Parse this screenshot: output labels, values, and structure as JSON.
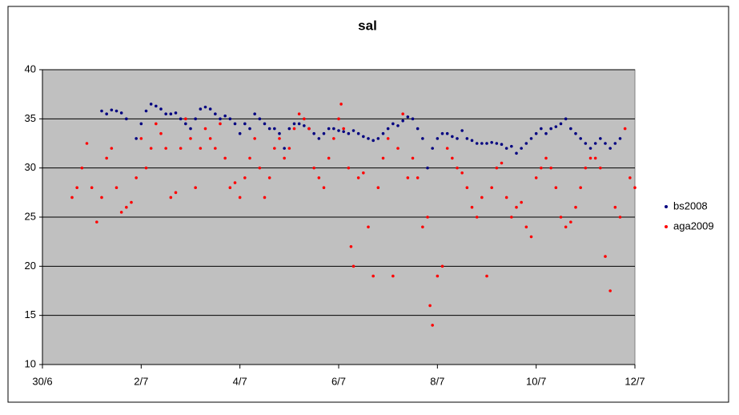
{
  "chart_data": {
    "type": "scatter",
    "title": "sal",
    "xlim": [
      0,
      12
    ],
    "xticks": [
      {
        "value": 0,
        "label": "30/6"
      },
      {
        "value": 2,
        "label": "2/7"
      },
      {
        "value": 4,
        "label": "4/7"
      },
      {
        "value": 6,
        "label": "6/7"
      },
      {
        "value": 8,
        "label": "8/7"
      },
      {
        "value": 10,
        "label": "10/7"
      },
      {
        "value": 12,
        "label": "12/7"
      }
    ],
    "ylim": [
      10,
      40
    ],
    "yticks": [
      10,
      15,
      20,
      25,
      30,
      35,
      40
    ],
    "grid": true,
    "legend": "right",
    "series": [
      {
        "name": "bs2008",
        "color": "#000080",
        "x": [
          1.2,
          1.3,
          1.4,
          1.5,
          1.6,
          1.7,
          1.9,
          2.0,
          2.1,
          2.2,
          2.3,
          2.4,
          2.5,
          2.6,
          2.7,
          2.8,
          2.9,
          3.0,
          3.1,
          3.2,
          3.3,
          3.4,
          3.5,
          3.6,
          3.7,
          3.8,
          3.9,
          4.0,
          4.1,
          4.2,
          4.3,
          4.4,
          4.5,
          4.6,
          4.7,
          4.8,
          4.9,
          5.0,
          5.1,
          5.2,
          5.3,
          5.4,
          5.5,
          5.6,
          5.7,
          5.8,
          5.9,
          6.0,
          6.1,
          6.2,
          6.3,
          6.4,
          6.5,
          6.6,
          6.7,
          6.8,
          6.9,
          7.0,
          7.1,
          7.2,
          7.3,
          7.4,
          7.5,
          7.6,
          7.7,
          7.8,
          7.9,
          8.0,
          8.1,
          8.2,
          8.3,
          8.4,
          8.5,
          8.6,
          8.7,
          8.8,
          8.9,
          9.0,
          9.1,
          9.2,
          9.3,
          9.4,
          9.5,
          9.6,
          9.7,
          9.8,
          9.9,
          10.0,
          10.1,
          10.2,
          10.3,
          10.4,
          10.5,
          10.6,
          10.7,
          10.8,
          10.9,
          11.0,
          11.1,
          11.2,
          11.3,
          11.4,
          11.5,
          11.6,
          11.7
        ],
        "values": [
          35.8,
          35.5,
          35.9,
          35.8,
          35.6,
          35,
          33,
          34.5,
          35.8,
          36.5,
          36.3,
          36,
          35.5,
          35.5,
          35.6,
          35,
          34.5,
          34,
          35,
          36,
          36.2,
          36,
          35.5,
          35,
          35.3,
          35,
          34.5,
          33.5,
          34.5,
          34,
          35.5,
          35,
          34.5,
          34,
          34,
          33.5,
          32,
          34,
          34.5,
          34.5,
          34.3,
          34,
          33.5,
          33,
          33.5,
          34,
          34,
          33.8,
          33.7,
          33.5,
          33.8,
          33.5,
          33.2,
          33,
          32.8,
          33,
          33.5,
          34,
          34.5,
          34.3,
          34.8,
          35.2,
          35,
          34,
          33,
          30,
          32,
          33,
          33.5,
          33.5,
          33.2,
          33,
          33.8,
          33,
          32.8,
          32.5,
          32.5,
          32.5,
          32.6,
          32.5,
          32.4,
          32,
          32.2,
          31.5,
          32,
          32.5,
          33,
          33.5,
          34,
          33.5,
          34,
          34.2,
          34.5,
          35,
          34,
          33.5,
          33,
          32.5,
          32,
          32.5,
          33,
          32.5,
          32,
          32.5,
          33
        ]
      },
      {
        "name": "aga2009",
        "color": "#ff0000",
        "x": [
          0.6,
          0.7,
          0.8,
          0.9,
          1.0,
          1.1,
          1.2,
          1.3,
          1.4,
          1.5,
          1.6,
          1.7,
          1.8,
          1.9,
          2.0,
          2.1,
          2.2,
          2.3,
          2.4,
          2.5,
          2.6,
          2.7,
          2.8,
          2.9,
          3.0,
          3.1,
          3.2,
          3.3,
          3.4,
          3.5,
          3.6,
          3.7,
          3.8,
          3.9,
          4.0,
          4.1,
          4.2,
          4.3,
          4.4,
          4.5,
          4.6,
          4.7,
          4.8,
          4.9,
          5.0,
          5.1,
          5.2,
          5.3,
          5.4,
          5.5,
          5.6,
          5.7,
          5.8,
          5.9,
          6.0,
          6.05,
          6.1,
          6.2,
          6.25,
          6.3,
          6.4,
          6.5,
          6.6,
          6.7,
          6.8,
          6.9,
          7.0,
          7.1,
          7.2,
          7.3,
          7.4,
          7.5,
          7.6,
          7.7,
          7.8,
          7.85,
          7.9,
          8.0,
          8.1,
          8.2,
          8.3,
          8.4,
          8.5,
          8.6,
          8.7,
          8.8,
          8.9,
          9.0,
          9.1,
          9.2,
          9.3,
          9.4,
          9.5,
          9.6,
          9.7,
          9.8,
          9.9,
          10.0,
          10.1,
          10.2,
          10.3,
          10.4,
          10.5,
          10.6,
          10.7,
          10.8,
          10.9,
          11.0,
          11.1,
          11.2,
          11.3,
          11.4,
          11.5,
          11.6,
          11.7,
          11.8,
          11.9,
          12.0
        ],
        "values": [
          27,
          28,
          30,
          32.5,
          28,
          24.5,
          27,
          31,
          32,
          28,
          25.5,
          26,
          26.5,
          29,
          33,
          30,
          32,
          34.5,
          33.5,
          32,
          27,
          27.5,
          32,
          35,
          33,
          28,
          32,
          34,
          33,
          32,
          34.5,
          31,
          28,
          28.5,
          27,
          29,
          31,
          33,
          30,
          27,
          29,
          32,
          33,
          31,
          32,
          34,
          35.5,
          35,
          34,
          30,
          29,
          28,
          31,
          33,
          35,
          36.5,
          34,
          30,
          22,
          20,
          29,
          29.5,
          24,
          19,
          28,
          31,
          33,
          19,
          32,
          35.5,
          29,
          31,
          29,
          24,
          25,
          16,
          14,
          19,
          20,
          32,
          31,
          30,
          29.5,
          28,
          26,
          25,
          27,
          19,
          28,
          30,
          30.5,
          27,
          25,
          26,
          26.5,
          24,
          23,
          29,
          30,
          31,
          30,
          28,
          25,
          24,
          24.5,
          26,
          28,
          30,
          31,
          31,
          30,
          21,
          17.5,
          26,
          25,
          34,
          29,
          28
        ]
      }
    ]
  }
}
